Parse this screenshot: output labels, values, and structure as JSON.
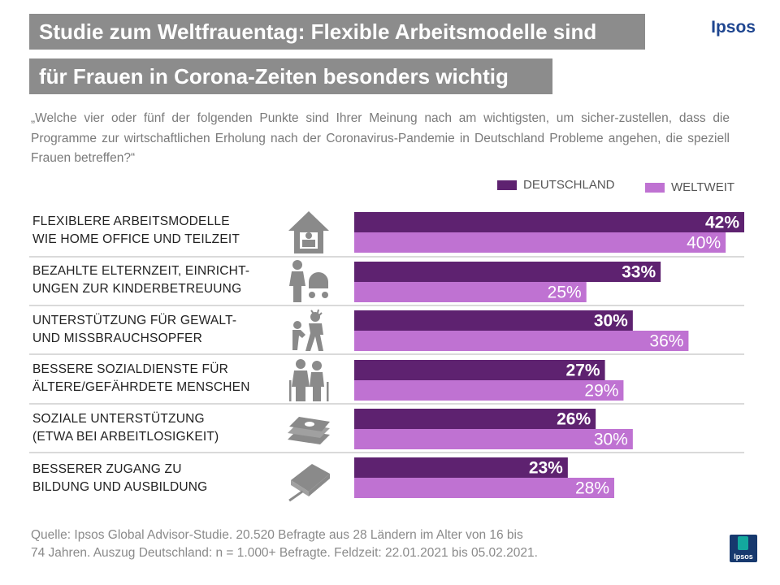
{
  "header": {
    "title_line1": "Studie zum Weltfrauentag: Flexible Arbeitsmodelle sind",
    "title_line2": "für Frauen in Corona-Zeiten besonders wichtig",
    "brand": "Ipsos"
  },
  "question": "„Welche vier oder fünf der folgenden Punkte sind Ihrer Meinung nach am wichtigsten, um sicher-zustellen, dass die Programme zur wirtschaftlichen Erholung nach der Coronavirus-Pandemie in Deutschland Probleme angehen, die speziell Frauen betreffen?“",
  "footer": {
    "source_line1": "Quelle: Ipsos Global Advisor-Studie.  20.520 Befragte aus 28 Ländern im Alter von 16 bis",
    "source_line2": "74 Jahren. Auszug Deutschland: n = 1.000+ Befragte. Feldzeit: 22.01.2021 bis 05.02.2021.",
    "logo_text": "Ipsos"
  },
  "colors": {
    "title_band": "#8c8c8c",
    "deutschland": "#5e2270",
    "weltweit": "#bf72d2",
    "brand": "#1f4690",
    "icon": "#8a8a8a"
  },
  "chart_data": {
    "type": "bar",
    "orientation": "horizontal",
    "value_suffix": "%",
    "xlim": [
      0,
      42
    ],
    "categories": [
      {
        "line1": "FLEXIBLERE ARBEITSMODELLE",
        "line2": "WIE HOME OFFICE UND TEILZEIT",
        "icon": "home-office-icon"
      },
      {
        "line1": "BEZAHLTE ELTERNZEIT, EINRICHT-",
        "line2": "UNGEN ZUR KINDERBETREUUNG",
        "icon": "parent-stroller-icon"
      },
      {
        "line1": "UNTERSTÜTZUNG FÜR GEWALT-",
        "line2": "UND MISSBRAUCHSOPFER",
        "icon": "violence-icon"
      },
      {
        "line1": "BESSERE SOZIALDIENSTE FÜR",
        "line2": "ÄLTERE/GEFÄHRDETE MENSCHEN",
        "icon": "elderly-couple-icon"
      },
      {
        "line1": "SOZIALE UNTERSTÜTZUNG",
        "line2": "(ETWA BEI ARBEITLOSIGKEIT)",
        "icon": "money-stack-icon"
      },
      {
        "line1": "BESSERER ZUGANG ZU",
        "line2": "BILDUNG UND AUSBILDUNG",
        "icon": "book-pen-icon"
      }
    ],
    "series": [
      {
        "name": "DEUTSCHLAND",
        "values": [
          42,
          33,
          30,
          27,
          26,
          23
        ]
      },
      {
        "name": "WELTWEIT",
        "values": [
          40,
          25,
          36,
          29,
          30,
          28
        ]
      }
    ],
    "legend_position": "top-right"
  }
}
